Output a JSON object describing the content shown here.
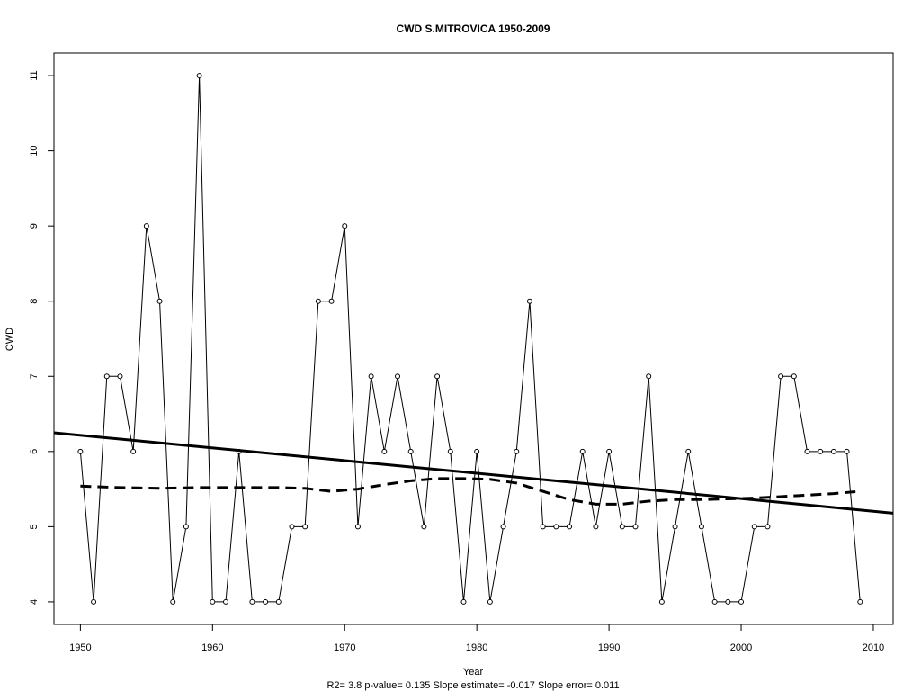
{
  "chart_data": {
    "type": "line",
    "title": "CWD    S.MITROVICA 1950-2009",
    "xlabel": "Year",
    "ylabel": "CWD",
    "footer": "R2= 3.8  p-value= 0.135  Slope estimate= -0.017  Slope error= 0.011",
    "xlim": [
      1948,
      2011.5
    ],
    "ylim": [
      3.7,
      11.3
    ],
    "x_ticks": [
      1950,
      1960,
      1970,
      1980,
      1990,
      2000,
      2010
    ],
    "y_ticks": [
      4,
      5,
      6,
      7,
      8,
      9,
      10,
      11
    ],
    "grid": false,
    "legend": "none",
    "series": [
      {
        "style": "thin solid line with open circle markers",
        "x": [
          1950,
          1951,
          1952,
          1953,
          1954,
          1955,
          1956,
          1957,
          1958,
          1959,
          1960,
          1961,
          1962,
          1963,
          1964,
          1965,
          1966,
          1967,
          1968,
          1969,
          1970,
          1971,
          1972,
          1973,
          1974,
          1975,
          1976,
          1977,
          1978,
          1979,
          1980,
          1981,
          1982,
          1983,
          1984,
          1985,
          1986,
          1987,
          1988,
          1989,
          1990,
          1991,
          1992,
          1993,
          1994,
          1995,
          1996,
          1997,
          1998,
          1999,
          2000,
          2001,
          2002,
          2003,
          2004,
          2005,
          2006,
          2007,
          2008,
          2009
        ],
        "values": [
          6,
          4,
          7,
          7,
          6,
          9,
          8,
          4,
          5,
          11,
          4,
          4,
          6,
          4,
          4,
          4,
          5,
          5,
          8,
          8,
          9,
          5,
          7,
          6,
          7,
          6,
          5,
          7,
          6,
          4,
          6,
          4,
          5,
          6,
          8,
          5,
          5,
          5,
          6,
          5,
          6,
          5,
          5,
          7,
          4,
          5,
          6,
          5,
          4,
          4,
          4,
          5,
          5,
          7,
          7,
          6,
          6,
          6,
          6,
          4
        ]
      },
      {
        "style": "thick solid linear trend",
        "x": [
          1948,
          2011.5
        ],
        "values": [
          6.25,
          5.18
        ]
      },
      {
        "style": "thick dashed smoothed curve",
        "x": [
          1950,
          1953,
          1956,
          1959,
          1962,
          1965,
          1967,
          1969,
          1971,
          1973,
          1975,
          1977,
          1979,
          1981,
          1983,
          1985,
          1987,
          1989,
          1991,
          1993,
          1995,
          1997,
          1999,
          2001,
          2003,
          2005,
          2007,
          2009
        ],
        "values": [
          5.54,
          5.52,
          5.51,
          5.52,
          5.52,
          5.52,
          5.51,
          5.47,
          5.5,
          5.56,
          5.61,
          5.64,
          5.64,
          5.63,
          5.58,
          5.47,
          5.36,
          5.3,
          5.3,
          5.34,
          5.36,
          5.36,
          5.37,
          5.38,
          5.4,
          5.42,
          5.44,
          5.47
        ]
      }
    ]
  }
}
